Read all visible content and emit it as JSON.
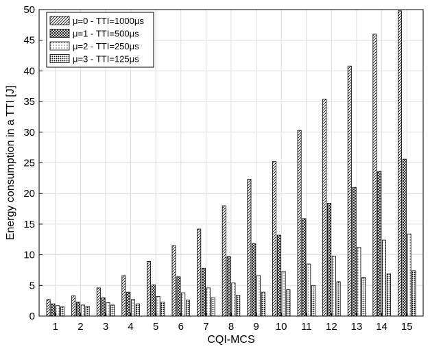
{
  "chart_data": {
    "type": "bar",
    "xlabel": "CQI-MCS",
    "ylabel": "Energy consumption in a TTI [J]",
    "ylim": [
      0,
      50
    ],
    "yticks": [
      0,
      5,
      10,
      15,
      20,
      25,
      30,
      35,
      40,
      45,
      50
    ],
    "grid": true,
    "legend_position": "top-left",
    "categories": [
      "1",
      "2",
      "3",
      "4",
      "5",
      "6",
      "7",
      "8",
      "9",
      "10",
      "11",
      "12",
      "13",
      "14",
      "15"
    ],
    "series": [
      {
        "name": "μ=0 - TTI=1000μs",
        "pattern": "diagonal",
        "values": [
          2.7,
          3.3,
          4.6,
          6.6,
          8.9,
          11.5,
          14.2,
          18.0,
          22.3,
          25.2,
          30.3,
          35.4,
          40.8,
          46.0,
          49.8
        ]
      },
      {
        "name": "μ=1 - TTI=500μs",
        "pattern": "crosshatch",
        "values": [
          2.0,
          2.3,
          3.0,
          3.9,
          5.1,
          6.4,
          7.8,
          9.7,
          11.8,
          13.2,
          15.9,
          18.4,
          21.0,
          23.6,
          25.6
        ]
      },
      {
        "name": "μ=2 - TTI=250μs",
        "pattern": "dots",
        "values": [
          1.7,
          1.8,
          2.2,
          2.7,
          3.2,
          3.8,
          4.6,
          5.4,
          6.6,
          7.3,
          8.5,
          9.8,
          11.2,
          12.4,
          13.4
        ]
      },
      {
        "name": "μ=3 - TTI=125μs",
        "pattern": "dense-dots",
        "values": [
          1.5,
          1.6,
          1.8,
          2.0,
          2.3,
          2.6,
          3.0,
          3.4,
          3.9,
          4.3,
          5.0,
          5.6,
          6.3,
          6.9,
          7.4
        ]
      }
    ]
  }
}
